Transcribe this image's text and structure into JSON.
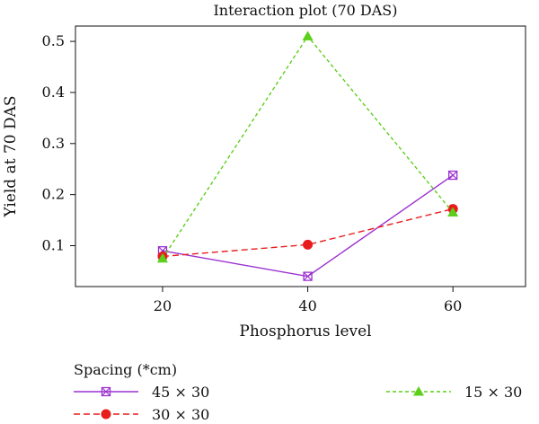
{
  "chart_data": {
    "type": "line",
    "title": "Interaction plot (70 DAS)",
    "xlabel": "Phosphorus level",
    "ylabel": "Yield at 70 DAS",
    "x": [
      20,
      40,
      60
    ],
    "xlim": [
      8,
      70
    ],
    "ylim": [
      0.02,
      0.53
    ],
    "yticks": [
      0.1,
      0.2,
      0.3,
      0.4,
      0.5
    ],
    "xticks": [
      20,
      40,
      60
    ],
    "legend_title": "Spacing (*cm)",
    "legend_position": "bottom",
    "series": [
      {
        "name": "45 × 30",
        "values": [
          0.09,
          0.04,
          0.238
        ],
        "color": "#9b30d0",
        "marker": "square-x",
        "dash": "solid"
      },
      {
        "name": "30 × 30",
        "values": [
          0.079,
          0.102,
          0.172
        ],
        "color": "#e81c1c",
        "marker": "circle",
        "dash": "dashed"
      },
      {
        "name": "15 × 30",
        "values": [
          0.075,
          0.51,
          0.165
        ],
        "color": "#5ccf1a",
        "marker": "triangle",
        "dash": "dotted"
      }
    ]
  }
}
